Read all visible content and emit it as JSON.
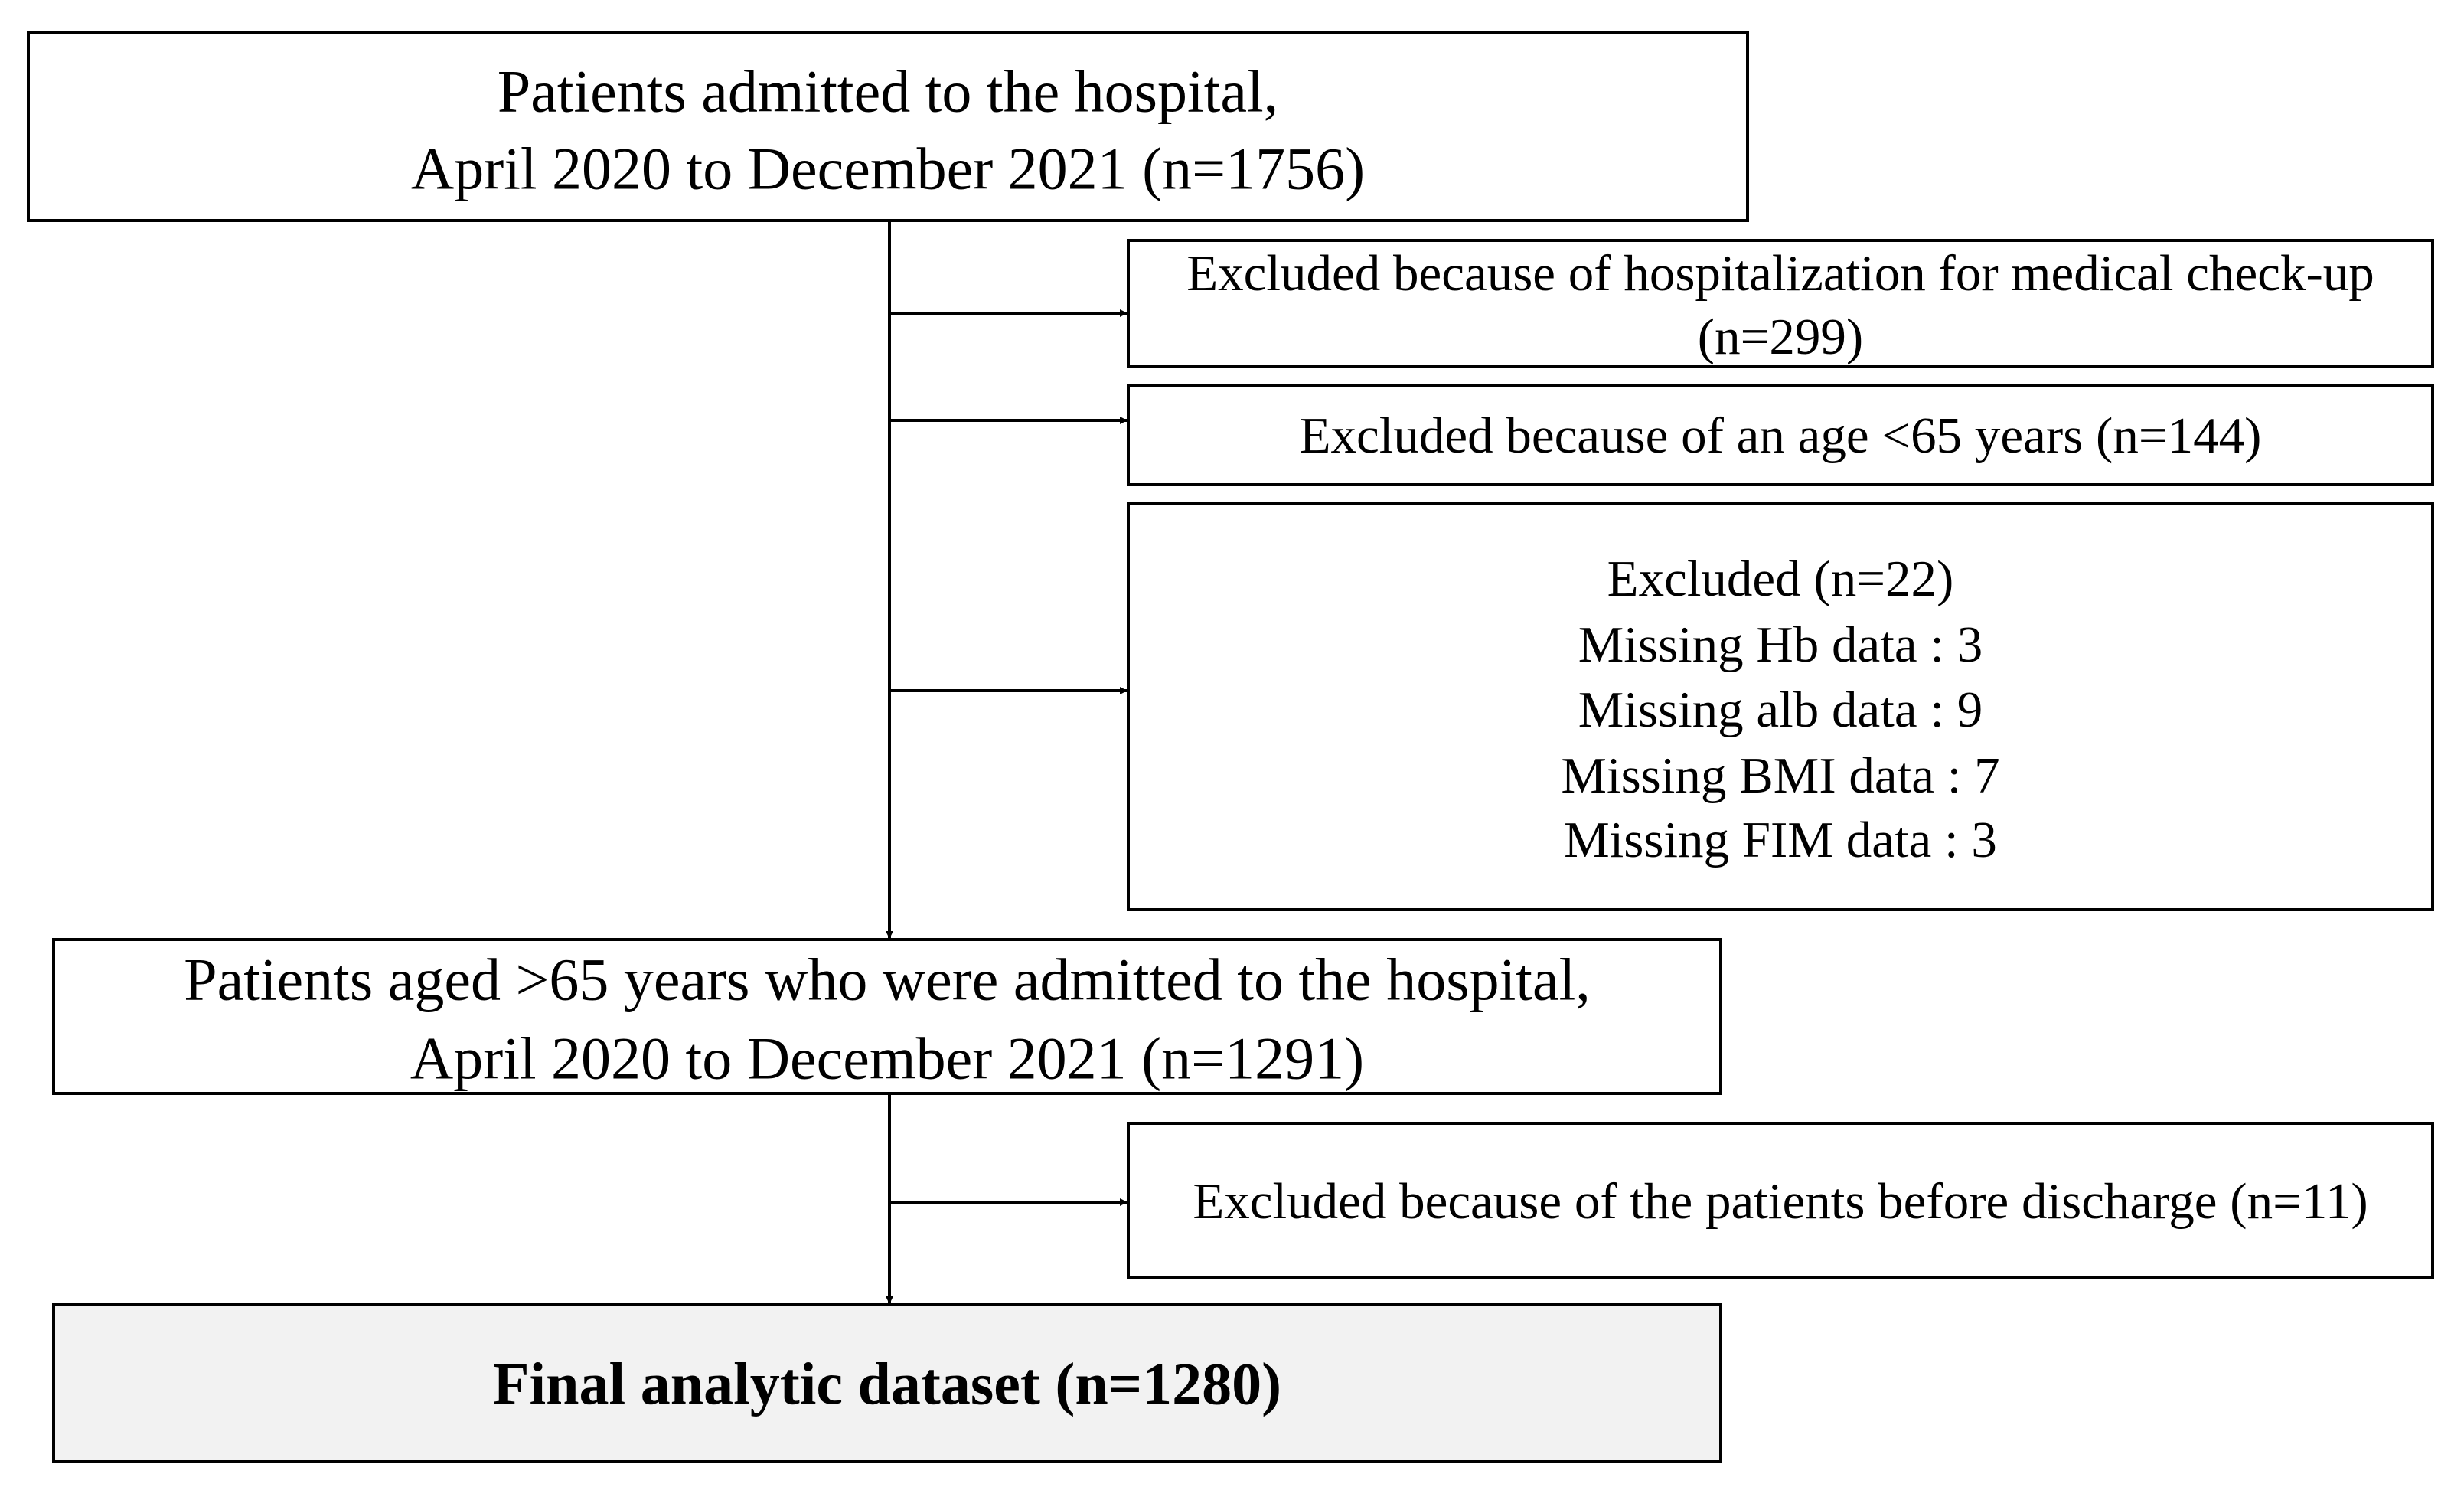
{
  "nodes": [
    {
      "lines": [
        "Patients admitted to the hospital,",
        "April 2020 to December 2021 (n=1756)"
      ]
    },
    {
      "lines": [
        "Excluded because of hospitalization for medical check-up",
        "(n=299)"
      ]
    },
    {
      "lines": [
        "Excluded because of an age <65 years (n=144)"
      ]
    },
    {
      "lines": [
        "Excluded (n=22)",
        "Missing Hb data : 3",
        "Missing alb data : 9",
        "Missing BMI data : 7",
        "Missing FIM data : 3"
      ]
    },
    {
      "lines": [
        "Patients aged >65 years who were admitted to the hospital,",
        "April 2020 to December 2021 (n=1291)"
      ]
    },
    {
      "lines": [
        "Excluded because of the patients before discharge (n=11)"
      ]
    },
    {
      "lines": [
        "Final analytic dataset (n=1280)"
      ]
    }
  ]
}
